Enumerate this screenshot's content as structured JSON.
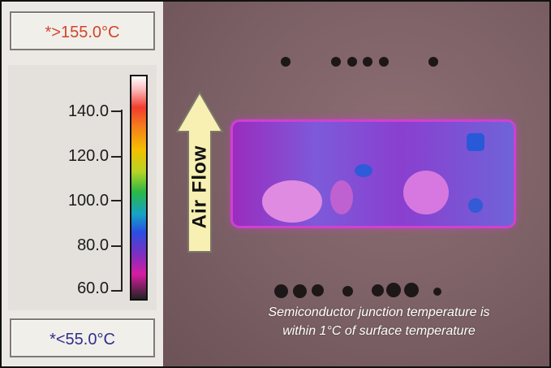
{
  "panel": {
    "max_label": "*>155.0°C",
    "min_label": "*<55.0°C",
    "ticks": [
      "140.0",
      "120.0",
      "100.0",
      "80.0",
      "60.0"
    ]
  },
  "arrow": {
    "label": "Air Flow"
  },
  "caption": {
    "line1": "Semiconductor junction temperature is",
    "line2": "within 1°C of surface temperature"
  },
  "colors": {
    "max_text": "#d1452b",
    "min_text": "#2f2f8c",
    "board": "#8e3fcf",
    "board_edge": "#d041d0",
    "arrow_fill": "#f7f0b2"
  }
}
